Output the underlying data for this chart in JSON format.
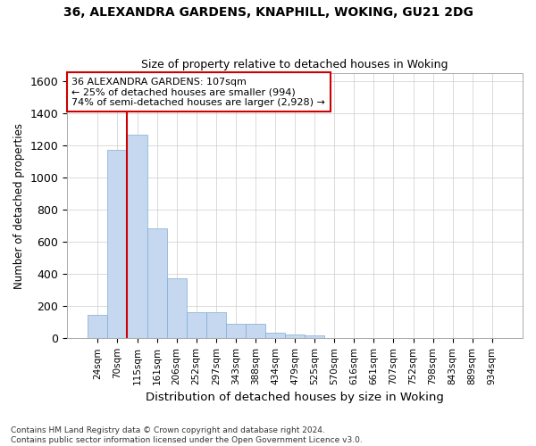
{
  "title1": "36, ALEXANDRA GARDENS, KNAPHILL, WOKING, GU21 2DG",
  "title2": "Size of property relative to detached houses in Woking",
  "xlabel": "Distribution of detached houses by size in Woking",
  "ylabel": "Number of detached properties",
  "categories": [
    "24sqm",
    "70sqm",
    "115sqm",
    "161sqm",
    "206sqm",
    "252sqm",
    "297sqm",
    "343sqm",
    "388sqm",
    "434sqm",
    "479sqm",
    "525sqm",
    "570sqm",
    "616sqm",
    "661sqm",
    "707sqm",
    "752sqm",
    "798sqm",
    "843sqm",
    "889sqm",
    "934sqm"
  ],
  "bar_values": [
    148,
    1175,
    1265,
    685,
    375,
    162,
    162,
    90,
    90,
    35,
    25,
    18,
    0,
    0,
    0,
    0,
    0,
    0,
    0,
    0,
    0
  ],
  "bar_color": "#c5d8f0",
  "bar_edge_color": "#7fadd4",
  "grid_color": "#cccccc",
  "background_color": "#ffffff",
  "vline_color": "#cc0000",
  "annotation_line1": "36 ALEXANDRA GARDENS: 107sqm",
  "annotation_line2": "← 25% of detached houses are smaller (994)",
  "annotation_line3": "74% of semi-detached houses are larger (2,928) →",
  "annotation_box_color": "#ffffff",
  "annotation_box_edge": "#cc0000",
  "ylim": [
    0,
    1650
  ],
  "yticks": [
    0,
    200,
    400,
    600,
    800,
    1000,
    1200,
    1400,
    1600
  ],
  "footer": "Contains HM Land Registry data © Crown copyright and database right 2024.\nContains public sector information licensed under the Open Government Licence v3.0."
}
